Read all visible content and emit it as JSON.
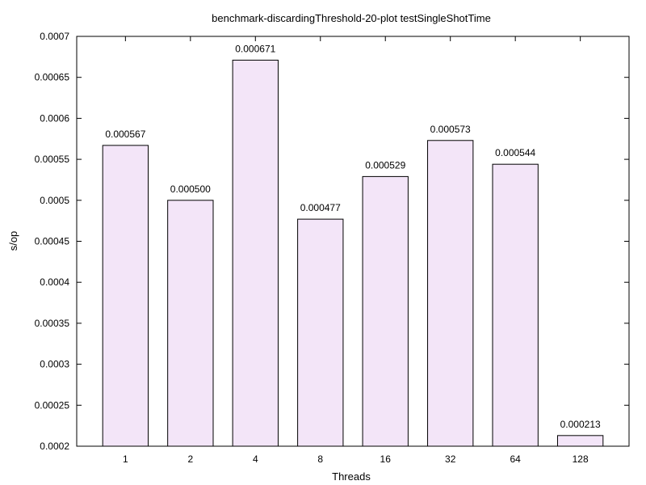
{
  "chart_data": {
    "type": "bar",
    "title": "benchmark-discardingThreshold-20-plot testSingleShotTime",
    "xlabel": "Threads",
    "ylabel": "s/op",
    "categories": [
      "1",
      "2",
      "4",
      "8",
      "16",
      "32",
      "64",
      "128"
    ],
    "values": [
      0.000567,
      0.0005,
      0.000671,
      0.000477,
      0.000529,
      0.000573,
      0.000544,
      0.000213
    ],
    "data_labels": [
      "0.000567",
      "0.000500",
      "0.000671",
      "0.000477",
      "0.000529",
      "0.000573",
      "0.000544",
      "0.000213"
    ],
    "ylim": [
      0.0002,
      0.0007
    ],
    "yticks": [
      "0.0002",
      "0.00025",
      "0.0003",
      "0.00035",
      "0.0004",
      "0.00045",
      "0.0005",
      "0.00055",
      "0.0006",
      "0.00065",
      "0.0007"
    ],
    "grid": false,
    "legend": "none",
    "bar_fill": "#f3e5f8",
    "bar_stroke": "#000000"
  }
}
